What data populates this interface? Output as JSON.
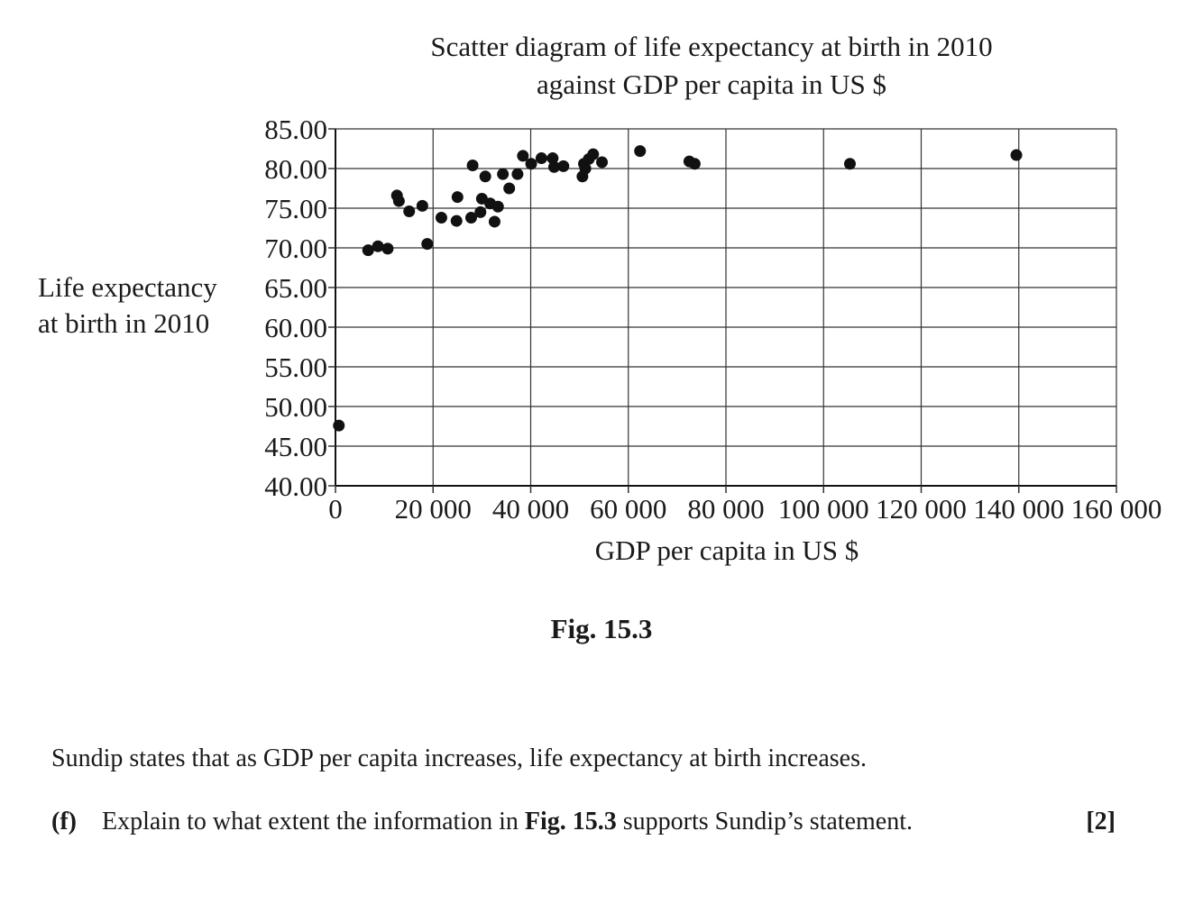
{
  "chart_data": {
    "type": "scatter",
    "title": [
      "Scatter diagram of life expectancy at birth in 2010",
      "against GDP per capita in US $"
    ],
    "xlabel": "GDP per capita in US $",
    "ylabel": [
      "Life expectancy",
      "at birth in 2010"
    ],
    "xlim": [
      0,
      160000
    ],
    "ylim": [
      40,
      85
    ],
    "xticks": [
      0,
      20000,
      40000,
      60000,
      80000,
      100000,
      120000,
      140000,
      160000
    ],
    "xtick_labels": [
      "0",
      "20 000",
      "40 000",
      "60 000",
      "80 000",
      "100 000",
      "120 000",
      "140 000",
      "160 000"
    ],
    "yticks": [
      85,
      80,
      75,
      70,
      65,
      60,
      55,
      50,
      45,
      40
    ],
    "ytick_labels": [
      "85.00",
      "80.00",
      "75.00",
      "70.00",
      "65.00",
      "60.00",
      "55.00",
      "50.00",
      "45.00",
      "40.00"
    ],
    "grid": true,
    "points": [
      {
        "x": 700,
        "y": 47.6
      },
      {
        "x": 6700,
        "y": 69.7
      },
      {
        "x": 8700,
        "y": 70.2
      },
      {
        "x": 10700,
        "y": 69.9
      },
      {
        "x": 12600,
        "y": 76.6
      },
      {
        "x": 13000,
        "y": 75.9
      },
      {
        "x": 15100,
        "y": 74.6
      },
      {
        "x": 17800,
        "y": 75.3
      },
      {
        "x": 18800,
        "y": 70.5
      },
      {
        "x": 21700,
        "y": 73.8
      },
      {
        "x": 24800,
        "y": 73.4
      },
      {
        "x": 25000,
        "y": 76.4
      },
      {
        "x": 27800,
        "y": 73.8
      },
      {
        "x": 28100,
        "y": 80.4
      },
      {
        "x": 29700,
        "y": 74.5
      },
      {
        "x": 30000,
        "y": 76.2
      },
      {
        "x": 30700,
        "y": 79.0
      },
      {
        "x": 31700,
        "y": 75.6
      },
      {
        "x": 32600,
        "y": 73.3
      },
      {
        "x": 33300,
        "y": 75.2
      },
      {
        "x": 34300,
        "y": 79.3
      },
      {
        "x": 35600,
        "y": 77.5
      },
      {
        "x": 37300,
        "y": 79.3
      },
      {
        "x": 38400,
        "y": 81.6
      },
      {
        "x": 40100,
        "y": 80.6
      },
      {
        "x": 42200,
        "y": 81.3
      },
      {
        "x": 44500,
        "y": 81.3
      },
      {
        "x": 44800,
        "y": 80.2
      },
      {
        "x": 46700,
        "y": 80.3
      },
      {
        "x": 50600,
        "y": 79.0
      },
      {
        "x": 50900,
        "y": 80.6
      },
      {
        "x": 51200,
        "y": 80.0
      },
      {
        "x": 51900,
        "y": 81.2
      },
      {
        "x": 52800,
        "y": 81.8
      },
      {
        "x": 54600,
        "y": 80.8
      },
      {
        "x": 62400,
        "y": 82.2
      },
      {
        "x": 72500,
        "y": 80.9
      },
      {
        "x": 73600,
        "y": 80.6
      },
      {
        "x": 105400,
        "y": 80.6
      },
      {
        "x": 139500,
        "y": 81.7
      }
    ]
  },
  "figure_caption": "Fig. 15.3",
  "statement": "Sundip states that as GDP per capita increases, life expectancy at birth increases.",
  "question": {
    "label": "(f)",
    "text_before": "Explain to what extent the information in",
    "text_bold": "Fig. 15.3",
    "text_after": "supports Sundip’s statement.",
    "marks": "[2]"
  }
}
